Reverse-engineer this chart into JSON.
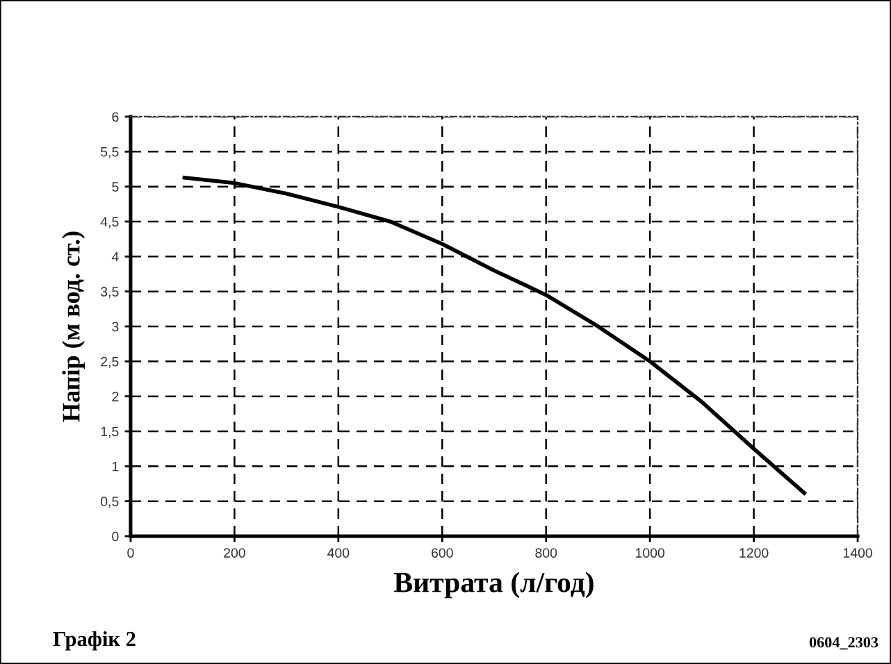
{
  "chart_data": {
    "type": "line",
    "xlabel": "Витрата (л/год)",
    "ylabel": "Напір (м вод. ст.)",
    "annotations": [
      "Графік 2",
      "0604_2303"
    ],
    "x": [
      100,
      200,
      300,
      400,
      500,
      600,
      700,
      800,
      900,
      1000,
      1100,
      1200,
      1300
    ],
    "values": [
      5.13,
      5.05,
      4.9,
      4.71,
      4.5,
      4.18,
      3.8,
      3.45,
      3.0,
      2.5,
      1.92,
      1.25,
      0.6
    ],
    "color": "#000000",
    "xlim": [
      0,
      1400
    ],
    "xticks": [
      0,
      200,
      400,
      600,
      800,
      1000,
      1200,
      1400
    ],
    "ylim": [
      0,
      6
    ],
    "yticks": [
      0,
      {
        "value": 0.5,
        "label": "0,5"
      },
      1,
      {
        "value": 1.5,
        "label": "1,5"
      },
      2,
      {
        "value": 2.5,
        "label": "2,5"
      },
      3,
      {
        "value": 3.5,
        "label": "3,5"
      },
      4,
      {
        "value": 4.5,
        "label": "4,5"
      },
      5,
      {
        "value": 5.5,
        "label": "5,5"
      },
      6
    ],
    "grid": true,
    "line_style": "solid"
  }
}
